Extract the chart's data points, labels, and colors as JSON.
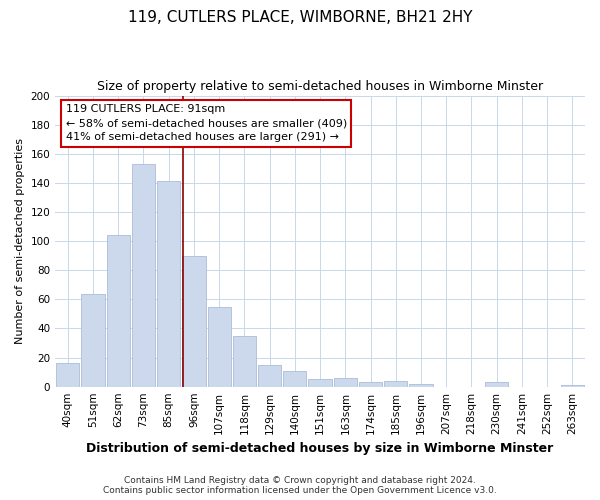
{
  "title": "119, CUTLERS PLACE, WIMBORNE, BH21 2HY",
  "subtitle": "Size of property relative to semi-detached houses in Wimborne Minster",
  "xlabel": "Distribution of semi-detached houses by size in Wimborne Minster",
  "ylabel": "Number of semi-detached properties",
  "bar_labels": [
    "40sqm",
    "51sqm",
    "62sqm",
    "73sqm",
    "85sqm",
    "96sqm",
    "107sqm",
    "118sqm",
    "129sqm",
    "140sqm",
    "151sqm",
    "163sqm",
    "174sqm",
    "185sqm",
    "196sqm",
    "207sqm",
    "218sqm",
    "230sqm",
    "241sqm",
    "252sqm",
    "263sqm"
  ],
  "bar_values": [
    16,
    64,
    104,
    153,
    141,
    90,
    55,
    35,
    15,
    11,
    5,
    6,
    3,
    4,
    2,
    0,
    0,
    3,
    0,
    0,
    1
  ],
  "bar_color": "#ccd9ec",
  "bar_edge_color": "#aabdd8",
  "vline_x_index": 4.55,
  "vline_color": "#8b0000",
  "annotation_line1": "119 CUTLERS PLACE: 91sqm",
  "annotation_line2": "← 58% of semi-detached houses are smaller (409)",
  "annotation_line3": "41% of semi-detached houses are larger (291) →",
  "ylim": [
    0,
    200
  ],
  "yticks": [
    0,
    20,
    40,
    60,
    80,
    100,
    120,
    140,
    160,
    180,
    200
  ],
  "footer_line1": "Contains HM Land Registry data © Crown copyright and database right 2024.",
  "footer_line2": "Contains public sector information licensed under the Open Government Licence v3.0.",
  "bg_color": "#ffffff",
  "grid_color": "#c8d8ea",
  "title_fontsize": 11,
  "subtitle_fontsize": 9,
  "xlabel_fontsize": 9,
  "ylabel_fontsize": 8,
  "tick_fontsize": 7.5,
  "annotation_fontsize": 8,
  "footer_fontsize": 6.5
}
